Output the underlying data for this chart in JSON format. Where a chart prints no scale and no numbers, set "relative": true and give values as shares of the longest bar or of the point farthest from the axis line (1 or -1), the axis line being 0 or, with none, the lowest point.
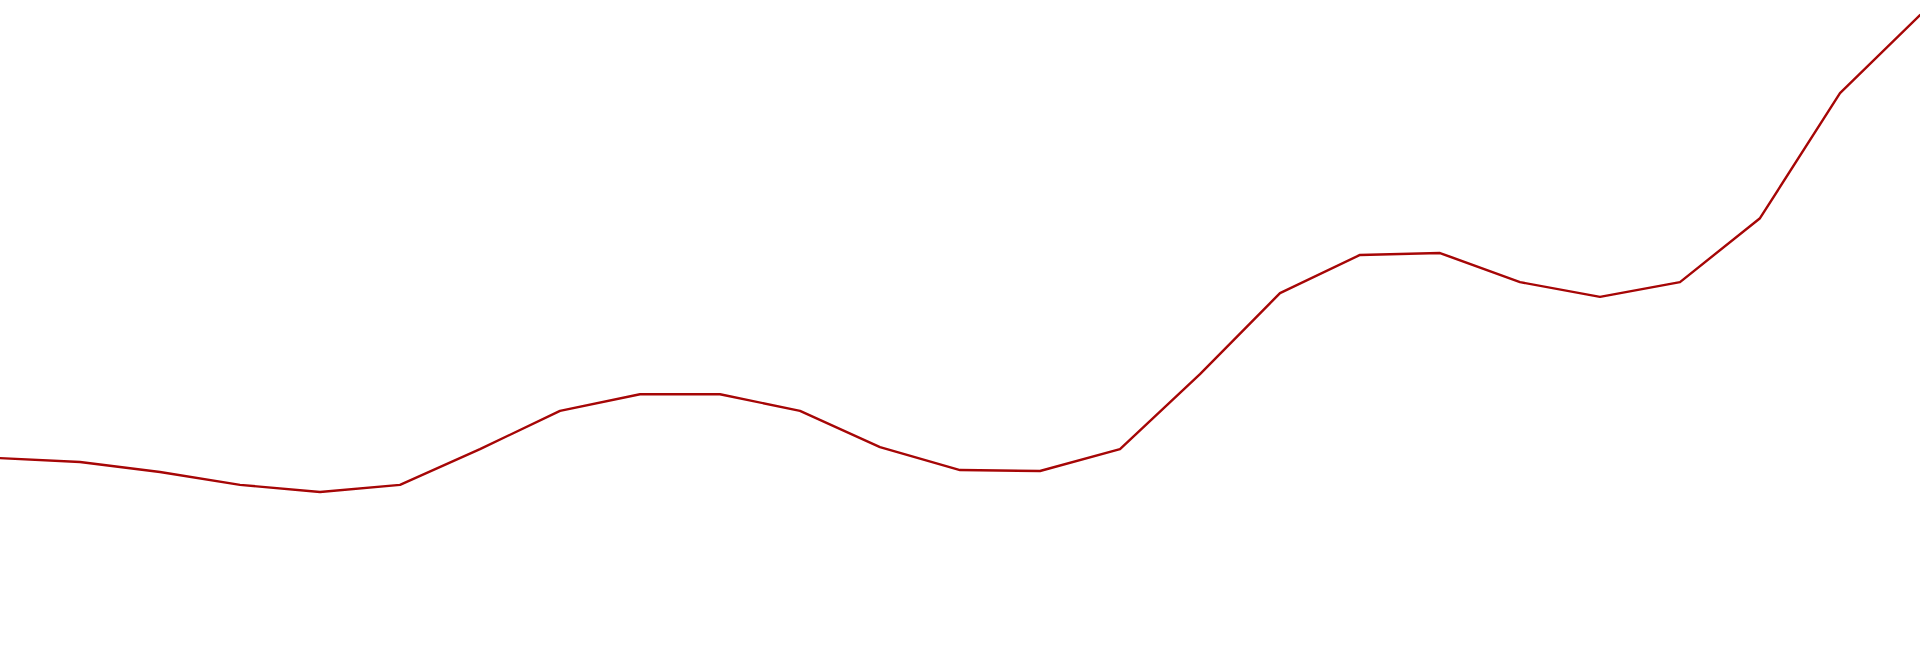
{
  "chart_data": {
    "type": "line",
    "relative": true,
    "categories": [
      null,
      null,
      null,
      null,
      null,
      null,
      null,
      null,
      null,
      null,
      null,
      null,
      null,
      null,
      null,
      null,
      null,
      null,
      null,
      null,
      null,
      null,
      null,
      null,
      null
    ],
    "series": [
      {
        "values": [
          0.071,
          0.063,
          0.042,
          0.015,
          0,
          0.015,
          0.09,
          0.17,
          0.205,
          0.205,
          0.17,
          0.094,
          0.046,
          0.044,
          0.09,
          0.247,
          0.417,
          0.497,
          0.501,
          0.44,
          0.409,
          0.44,
          0.574,
          0.836,
          1
        ],
        "color": "#a60606"
      }
    ],
    "legend": false,
    "marker": "none",
    "line_style": "solid"
  }
}
